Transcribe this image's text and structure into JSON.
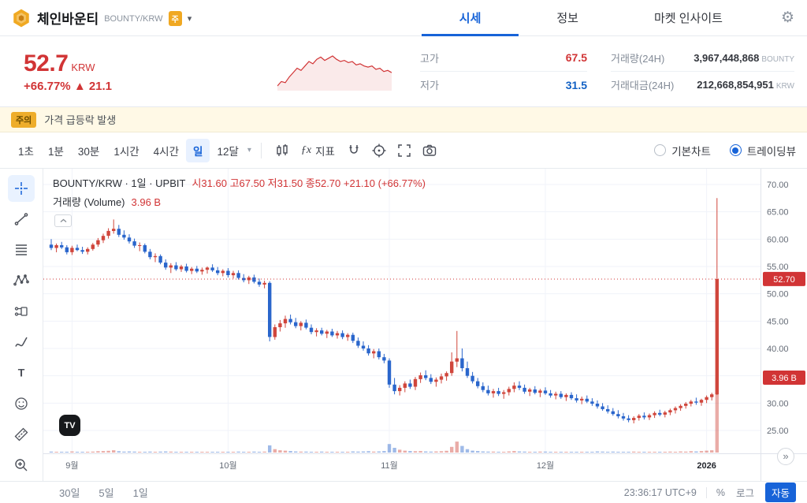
{
  "colors": {
    "red": "#d13435",
    "blue": "#1261c4",
    "accent": "#1763d8",
    "candle_up": "#d0463c",
    "candle_down": "#2a66cc",
    "vol_up": "rgba(208,70,60,0.45)",
    "vol_down": "rgba(42,102,204,0.45)",
    "grid": "#f0f3fa"
  },
  "icons": {
    "caret_down": "▾",
    "gear": "⚙",
    "goto_latest": "»",
    "watermark": "TV"
  },
  "header": {
    "title": "체인바운티",
    "pair": "BOUNTY/KRW",
    "badge": "주",
    "tabs": [
      {
        "label": "시세",
        "active": true
      },
      {
        "label": "정보",
        "active": false
      },
      {
        "label": "마켓 인사이트",
        "active": false
      }
    ]
  },
  "summary": {
    "price": "52.7",
    "currency": "KRW",
    "change_percent": "+66.77%",
    "change_delta": "▲ 21.1",
    "stats": [
      {
        "label": "고가",
        "value": "67.5"
      },
      {
        "label": "저가",
        "value": "31.5"
      },
      {
        "label": "거래량(24H)",
        "value": "3,967,448,868",
        "unit": "BOUNTY"
      },
      {
        "label": "거래대금(24H)",
        "value": "212,668,854,951",
        "unit": "KRW"
      }
    ],
    "sparkline": [
      40,
      44,
      43,
      48,
      52,
      56,
      54,
      58,
      62,
      60,
      64,
      66,
      63,
      65,
      67,
      64,
      62,
      63,
      61,
      62,
      59,
      60,
      58,
      57,
      58,
      55,
      56,
      53,
      54,
      52
    ]
  },
  "warning": {
    "badge": "주의",
    "text": "가격 급등락 발생"
  },
  "toolbar": {
    "intervals": [
      {
        "label": "1초"
      },
      {
        "label": "1분"
      },
      {
        "label": "30분"
      },
      {
        "label": "1시간"
      },
      {
        "label": "4시간"
      },
      {
        "label": "일",
        "active": true
      },
      {
        "label": "12달"
      }
    ],
    "fx": "ƒx",
    "indicator_label": "지표",
    "chart_modes": [
      {
        "label": "기본차트",
        "selected": false
      },
      {
        "label": "트레이딩뷰",
        "selected": true
      }
    ]
  },
  "legend": {
    "title": "BOUNTY/KRW · 1일 · UPBIT",
    "ohlc": "시31.60 고67.50 저31.50 종52.70 +21.10 (+66.77%)",
    "volume_title": "거래량 (Volume)",
    "volume_value": "3.96 B"
  },
  "footer": {
    "ranges": [
      "30일",
      "5일",
      "1일"
    ],
    "clock": "23:36:17 UTC+9",
    "percent": "%",
    "log": "로그",
    "auto": "자동"
  },
  "chart_data": {
    "type": "candlestick",
    "symbol": "BOUNTY/KRW",
    "interval": "1일",
    "exchange": "UPBIT",
    "last_price": 52.7,
    "last_change": "+21.10 (+66.77%)",
    "last_volume_label": "3.96 B",
    "volume_max": 3.96,
    "ylim": [
      24,
      71
    ],
    "y_ticks": [
      70,
      65,
      60,
      55,
      50,
      45,
      40,
      35,
      30,
      25
    ],
    "x_labels": [
      {
        "label": "9월",
        "index": 4
      },
      {
        "label": "10월",
        "index": 34
      },
      {
        "label": "11월",
        "index": 65
      },
      {
        "label": "12월",
        "index": 95
      },
      {
        "label": "2026",
        "index": 126,
        "bold": true
      }
    ],
    "candles": [
      [
        59.0,
        60.0,
        58.0,
        58.4
      ],
      [
        58.4,
        59.2,
        57.6,
        58.9
      ],
      [
        58.9,
        59.5,
        58.2,
        58.5
      ],
      [
        58.5,
        58.9,
        57.2,
        57.6
      ],
      [
        57.6,
        58.8,
        57.1,
        58.4
      ],
      [
        58.4,
        59.0,
        57.8,
        58.0
      ],
      [
        58.0,
        58.6,
        57.3,
        57.7
      ],
      [
        57.7,
        58.5,
        57.2,
        58.2
      ],
      [
        58.2,
        59.3,
        57.9,
        59.0
      ],
      [
        59.0,
        60.2,
        58.6,
        59.8
      ],
      [
        59.8,
        61.0,
        59.3,
        60.6
      ],
      [
        60.6,
        62.0,
        60.1,
        61.5
      ],
      [
        61.5,
        63.6,
        61.0,
        61.9
      ],
      [
        61.9,
        62.6,
        60.4,
        60.8
      ],
      [
        60.8,
        61.6,
        59.9,
        60.3
      ],
      [
        60.3,
        60.9,
        59.2,
        59.6
      ],
      [
        59.6,
        60.1,
        58.4,
        58.8
      ],
      [
        58.8,
        59.4,
        57.8,
        58.9
      ],
      [
        58.9,
        59.2,
        57.4,
        57.7
      ],
      [
        57.7,
        58.2,
        56.3,
        56.7
      ],
      [
        56.7,
        57.4,
        55.8,
        56.9
      ],
      [
        56.9,
        57.2,
        55.4,
        55.7
      ],
      [
        55.7,
        56.3,
        54.4,
        54.8
      ],
      [
        54.8,
        55.6,
        53.8,
        55.2
      ],
      [
        55.2,
        55.8,
        54.2,
        54.5
      ],
      [
        54.5,
        55.3,
        54.0,
        55.0
      ],
      [
        55.0,
        55.5,
        53.9,
        54.2
      ],
      [
        54.2,
        54.9,
        53.6,
        54.6
      ],
      [
        54.6,
        55.1,
        53.8,
        54.1
      ],
      [
        54.1,
        54.8,
        53.5,
        54.4
      ],
      [
        54.4,
        55.0,
        53.7,
        54.8
      ],
      [
        54.8,
        55.4,
        54.0,
        54.3
      ],
      [
        54.3,
        54.9,
        53.4,
        53.8
      ],
      [
        53.8,
        54.5,
        53.2,
        54.2
      ],
      [
        54.2,
        54.7,
        53.0,
        53.4
      ],
      [
        53.4,
        54.2,
        52.8,
        53.8
      ],
      [
        53.8,
        54.3,
        52.6,
        52.9
      ],
      [
        52.9,
        53.6,
        52.1,
        52.5
      ],
      [
        52.5,
        53.3,
        51.8,
        53.0
      ],
      [
        53.0,
        53.5,
        51.9,
        52.2
      ],
      [
        52.2,
        52.8,
        51.3,
        51.7
      ],
      [
        51.7,
        52.4,
        51.0,
        52.0
      ],
      [
        52.0,
        52.3,
        41.3,
        42.1
      ],
      [
        42.1,
        44.4,
        41.6,
        43.9
      ],
      [
        43.9,
        45.2,
        43.1,
        44.6
      ],
      [
        44.6,
        46.0,
        43.8,
        45.4
      ],
      [
        45.4,
        46.2,
        44.4,
        44.8
      ],
      [
        44.8,
        45.6,
        43.7,
        44.1
      ],
      [
        44.1,
        45.0,
        43.3,
        44.7
      ],
      [
        44.7,
        45.3,
        43.5,
        43.8
      ],
      [
        43.8,
        44.4,
        42.6,
        43.0
      ],
      [
        43.0,
        43.7,
        42.2,
        43.3
      ],
      [
        43.3,
        43.8,
        42.4,
        42.7
      ],
      [
        42.7,
        43.4,
        41.9,
        43.1
      ],
      [
        43.1,
        43.6,
        42.1,
        42.4
      ],
      [
        42.4,
        43.2,
        41.8,
        42.8
      ],
      [
        42.8,
        43.3,
        41.7,
        42.1
      ],
      [
        42.1,
        42.8,
        41.4,
        42.5
      ],
      [
        42.5,
        42.9,
        41.0,
        41.4
      ],
      [
        41.4,
        42.0,
        40.1,
        40.5
      ],
      [
        40.5,
        41.3,
        39.6,
        40.0
      ],
      [
        40.0,
        40.6,
        38.7,
        39.1
      ],
      [
        39.1,
        39.9,
        38.2,
        39.5
      ],
      [
        39.5,
        40.0,
        38.0,
        38.4
      ],
      [
        38.4,
        39.0,
        37.3,
        37.8
      ],
      [
        37.8,
        38.2,
        32.8,
        33.4
      ],
      [
        33.4,
        34.6,
        31.6,
        32.2
      ],
      [
        32.2,
        33.3,
        31.4,
        32.8
      ],
      [
        32.8,
        34.0,
        32.0,
        33.6
      ],
      [
        33.6,
        34.3,
        32.6,
        33.0
      ],
      [
        33.0,
        34.8,
        32.4,
        34.4
      ],
      [
        34.4,
        35.6,
        33.7,
        35.1
      ],
      [
        35.1,
        36.0,
        34.2,
        34.6
      ],
      [
        34.6,
        35.3,
        33.5,
        33.9
      ],
      [
        33.9,
        34.7,
        33.0,
        34.3
      ],
      [
        34.3,
        35.4,
        33.6,
        34.9
      ],
      [
        34.9,
        35.8,
        34.1,
        35.5
      ],
      [
        35.5,
        39.3,
        35.0,
        37.6
      ],
      [
        37.6,
        43.2,
        36.6,
        38.2
      ],
      [
        38.2,
        40.0,
        35.8,
        36.4
      ],
      [
        36.4,
        37.6,
        34.6,
        35.0
      ],
      [
        35.0,
        35.7,
        33.6,
        34.0
      ],
      [
        34.0,
        34.6,
        32.7,
        33.1
      ],
      [
        33.1,
        33.8,
        32.0,
        32.4
      ],
      [
        32.4,
        33.2,
        31.4,
        31.8
      ],
      [
        31.8,
        32.6,
        31.0,
        32.2
      ],
      [
        32.2,
        32.8,
        31.3,
        31.7
      ],
      [
        31.7,
        32.4,
        30.8,
        32.0
      ],
      [
        32.0,
        33.0,
        31.4,
        32.6
      ],
      [
        32.6,
        33.8,
        32.0,
        33.2
      ],
      [
        33.2,
        34.0,
        32.4,
        32.8
      ],
      [
        32.8,
        33.4,
        31.7,
        32.1
      ],
      [
        32.1,
        32.8,
        31.3,
        32.5
      ],
      [
        32.5,
        33.1,
        31.6,
        31.9
      ],
      [
        31.9,
        32.6,
        31.1,
        32.3
      ],
      [
        32.3,
        32.9,
        31.5,
        31.8
      ],
      [
        31.8,
        32.4,
        31.0,
        31.4
      ],
      [
        31.4,
        32.1,
        30.7,
        31.7
      ],
      [
        31.7,
        32.2,
        30.8,
        31.1
      ],
      [
        31.1,
        31.8,
        30.4,
        31.5
      ],
      [
        31.5,
        32.0,
        30.6,
        30.9
      ],
      [
        30.9,
        31.6,
        30.1,
        30.5
      ],
      [
        30.5,
        31.2,
        29.8,
        30.8
      ],
      [
        30.8,
        31.4,
        30.0,
        30.3
      ],
      [
        30.3,
        30.9,
        29.5,
        29.9
      ],
      [
        29.9,
        30.5,
        29.0,
        29.4
      ],
      [
        29.4,
        30.0,
        28.6,
        28.9
      ],
      [
        28.9,
        29.6,
        28.1,
        28.5
      ],
      [
        28.5,
        29.1,
        27.7,
        28.0
      ],
      [
        28.0,
        28.7,
        27.2,
        27.6
      ],
      [
        27.6,
        28.2,
        26.8,
        27.2
      ],
      [
        27.2,
        27.8,
        26.5,
        26.9
      ],
      [
        26.9,
        27.6,
        26.3,
        27.3
      ],
      [
        27.3,
        28.0,
        26.8,
        27.7
      ],
      [
        27.7,
        28.3,
        27.0,
        27.4
      ],
      [
        27.4,
        28.1,
        26.9,
        27.8
      ],
      [
        27.8,
        28.5,
        27.3,
        28.2
      ],
      [
        28.2,
        28.8,
        27.6,
        27.9
      ],
      [
        27.9,
        28.6,
        27.4,
        28.3
      ],
      [
        28.3,
        29.0,
        27.8,
        28.7
      ],
      [
        28.7,
        29.4,
        28.1,
        29.1
      ],
      [
        29.1,
        29.8,
        28.6,
        29.5
      ],
      [
        29.5,
        30.2,
        29.0,
        29.9
      ],
      [
        29.9,
        30.6,
        29.4,
        30.3
      ],
      [
        30.3,
        31.0,
        29.7,
        30.1
      ],
      [
        30.1,
        30.8,
        29.5,
        30.6
      ],
      [
        30.6,
        31.4,
        30.0,
        31.1
      ],
      [
        31.1,
        31.9,
        30.5,
        31.6
      ],
      [
        31.6,
        67.5,
        31.5,
        52.7
      ]
    ],
    "volumes": [
      0.05,
      0.04,
      0.03,
      0.04,
      0.06,
      0.03,
      0.02,
      0.03,
      0.05,
      0.07,
      0.08,
      0.09,
      0.12,
      0.07,
      0.05,
      0.06,
      0.05,
      0.04,
      0.04,
      0.05,
      0.04,
      0.05,
      0.06,
      0.05,
      0.04,
      0.03,
      0.04,
      0.03,
      0.03,
      0.04,
      0.03,
      0.03,
      0.04,
      0.03,
      0.04,
      0.03,
      0.05,
      0.04,
      0.04,
      0.05,
      0.04,
      0.05,
      0.38,
      0.18,
      0.12,
      0.1,
      0.08,
      0.06,
      0.05,
      0.05,
      0.04,
      0.04,
      0.05,
      0.04,
      0.03,
      0.04,
      0.04,
      0.03,
      0.06,
      0.05,
      0.06,
      0.07,
      0.05,
      0.06,
      0.08,
      0.45,
      0.25,
      0.15,
      0.1,
      0.08,
      0.07,
      0.08,
      0.06,
      0.05,
      0.06,
      0.07,
      0.09,
      0.3,
      0.58,
      0.35,
      0.18,
      0.1,
      0.08,
      0.06,
      0.05,
      0.05,
      0.04,
      0.04,
      0.06,
      0.08,
      0.06,
      0.05,
      0.04,
      0.04,
      0.05,
      0.05,
      0.04,
      0.04,
      0.03,
      0.04,
      0.03,
      0.03,
      0.04,
      0.03,
      0.04,
      0.06,
      0.05,
      0.04,
      0.05,
      0.04,
      0.03,
      0.04,
      0.05,
      0.04,
      0.03,
      0.04,
      0.03,
      0.04,
      0.03,
      0.05,
      0.04,
      0.06,
      0.05,
      0.07,
      0.06,
      0.08,
      0.1,
      0.12,
      3.96
    ]
  }
}
